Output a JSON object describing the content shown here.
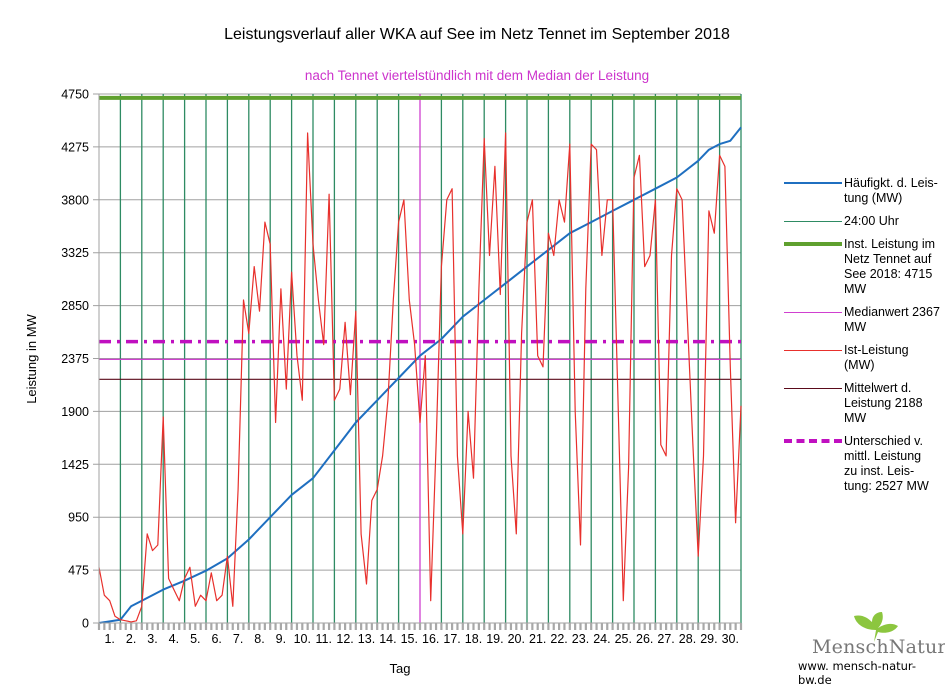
{
  "chart_data": {
    "type": "line",
    "title": "Leistungsverlauf aller WKA auf See im Netz Tennet im September 2018",
    "subtitle": "nach Tennet viertelstündlich mit dem Median der Leistung",
    "xlabel": "Tag",
    "ylabel": "Leistung in MW",
    "ylim": [
      0,
      4750
    ],
    "xlim": [
      0,
      30
    ],
    "yticks": [
      0,
      475,
      950,
      1425,
      1900,
      2375,
      2850,
      3325,
      3800,
      4275,
      4750
    ],
    "xtick_labels": [
      "1.",
      "2.",
      "3.",
      "4.",
      "5.",
      "6.",
      "7.",
      "8.",
      "9.",
      "10.",
      "11.",
      "12.",
      "13.",
      "14.",
      "15.",
      "16.",
      "17.",
      "18.",
      "19.",
      "20.",
      "21.",
      "22.",
      "23.",
      "24.",
      "25.",
      "26.",
      "27.",
      "28.",
      "29.",
      "30."
    ],
    "grid": true,
    "legend_position": "right",
    "colors": {
      "duration": "#1f6fc0",
      "midnight": "#2e8b63",
      "installed": "#5fa02e",
      "median": "#d040d0",
      "actual": "#e8302c",
      "mean": "#5a0a1a",
      "difference": "#c010c0",
      "grid": "#a0a0a0"
    },
    "series": [
      {
        "name": "Häufigkt. d. Leistung (MW)",
        "key": "duration",
        "x": [
          0,
          1,
          1.5,
          2,
          3,
          4,
          5,
          6,
          7,
          8,
          9,
          10,
          11,
          12,
          13,
          14,
          15,
          16,
          17,
          18,
          19,
          20,
          21,
          22,
          23,
          24,
          25,
          26,
          27,
          28,
          28.5,
          29,
          29.5,
          30
        ],
        "values": [
          0,
          30,
          150,
          200,
          300,
          380,
          470,
          580,
          750,
          950,
          1150,
          1300,
          1550,
          1800,
          2000,
          2200,
          2400,
          2550,
          2750,
          2900,
          3050,
          3200,
          3350,
          3500,
          3600,
          3700,
          3800,
          3900,
          4000,
          4150,
          4250,
          4300,
          4330,
          4450
        ]
      },
      {
        "name": "Ist-Leistung (MW)",
        "key": "actual",
        "x_step_days": 0.25,
        "values": [
          500,
          250,
          200,
          60,
          30,
          20,
          10,
          20,
          150,
          800,
          650,
          700,
          1850,
          400,
          300,
          200,
          400,
          500,
          150,
          250,
          200,
          450,
          200,
          250,
          600,
          150,
          1200,
          2900,
          2600,
          3200,
          2800,
          3600,
          3400,
          1800,
          3000,
          2100,
          3150,
          2400,
          2000,
          4400,
          3400,
          2900,
          2500,
          3850,
          2000,
          2100,
          2700,
          2050,
          2800,
          800,
          350,
          1100,
          1200,
          1500,
          2000,
          2900,
          3600,
          3800,
          2900,
          2500,
          1800,
          2400,
          200,
          1600,
          3200,
          3800,
          3900,
          1500,
          800,
          1900,
          1300,
          3000,
          4350,
          3300,
          4100,
          2950,
          4400,
          1500,
          800,
          2600,
          3600,
          3800,
          2400,
          2300,
          3500,
          3300,
          3800,
          3600,
          4300,
          1900,
          700,
          3000,
          4300,
          4250,
          3300,
          3800,
          3800,
          2000,
          200,
          1400,
          4000,
          4200,
          3200,
          3300,
          3800,
          1600,
          1500,
          3300,
          3900,
          3800,
          2700,
          1600,
          600,
          1500,
          3700,
          3500,
          4200,
          4100,
          2300,
          900,
          1950
        ]
      }
    ],
    "reference_lines": [
      {
        "name": "Inst. Leistung im Netz Tennet auf See 2018: 4715 MW",
        "key": "installed",
        "value": 4715
      },
      {
        "name": "Unterschied v. mittl. Leistung zu inst. Leistung: 2527 MW",
        "key": "difference",
        "value": 2527
      },
      {
        "name": "Medianwert 2367 MW",
        "key": "median",
        "value": 2367
      },
      {
        "name": "Mittelwert d. Leistung 2188 MW",
        "key": "mean",
        "value": 2188
      }
    ],
    "vertical_lines": {
      "name": "24:00 Uhr",
      "key": "midnight",
      "days": [
        1,
        2,
        3,
        4,
        5,
        6,
        7,
        8,
        9,
        10,
        11,
        12,
        13,
        14,
        16,
        17,
        18,
        19,
        20,
        21,
        22,
        23,
        24,
        25,
        26,
        27,
        28,
        29,
        30
      ],
      "median_marker_day": 15
    }
  },
  "legend": [
    {
      "key": "duration",
      "label": "Häufigkt. d. Leis-\ntung (MW)",
      "style": "solid",
      "weight": "medium"
    },
    {
      "key": "midnight",
      "label": "24:00 Uhr",
      "style": "solid",
      "weight": "thin"
    },
    {
      "key": "installed",
      "label": "Inst. Leistung im\nNetz Tennet auf\nSee 2018: 4715\nMW",
      "style": "solid",
      "weight": "thick"
    },
    {
      "key": "median",
      "label": "Medianwert 2367\nMW",
      "style": "solid",
      "weight": "thin"
    },
    {
      "key": "actual",
      "label": "Ist-Leistung\n(MW)",
      "style": "solid",
      "weight": "thin"
    },
    {
      "key": "mean",
      "label": "Mittelwert d.\nLeistung 2188\nMW",
      "style": "solid",
      "weight": "thin"
    },
    {
      "key": "difference",
      "label": "Unterschied v.\nmittl. Leistung\nzu inst. Leis-\ntung: 2527 MW",
      "style": "dashdot",
      "weight": "thick"
    }
  ],
  "logo": {
    "name": "MenschNatur",
    "url_text": "www. mensch-natur-bw.de",
    "leaf_color": "#8cc63f"
  }
}
